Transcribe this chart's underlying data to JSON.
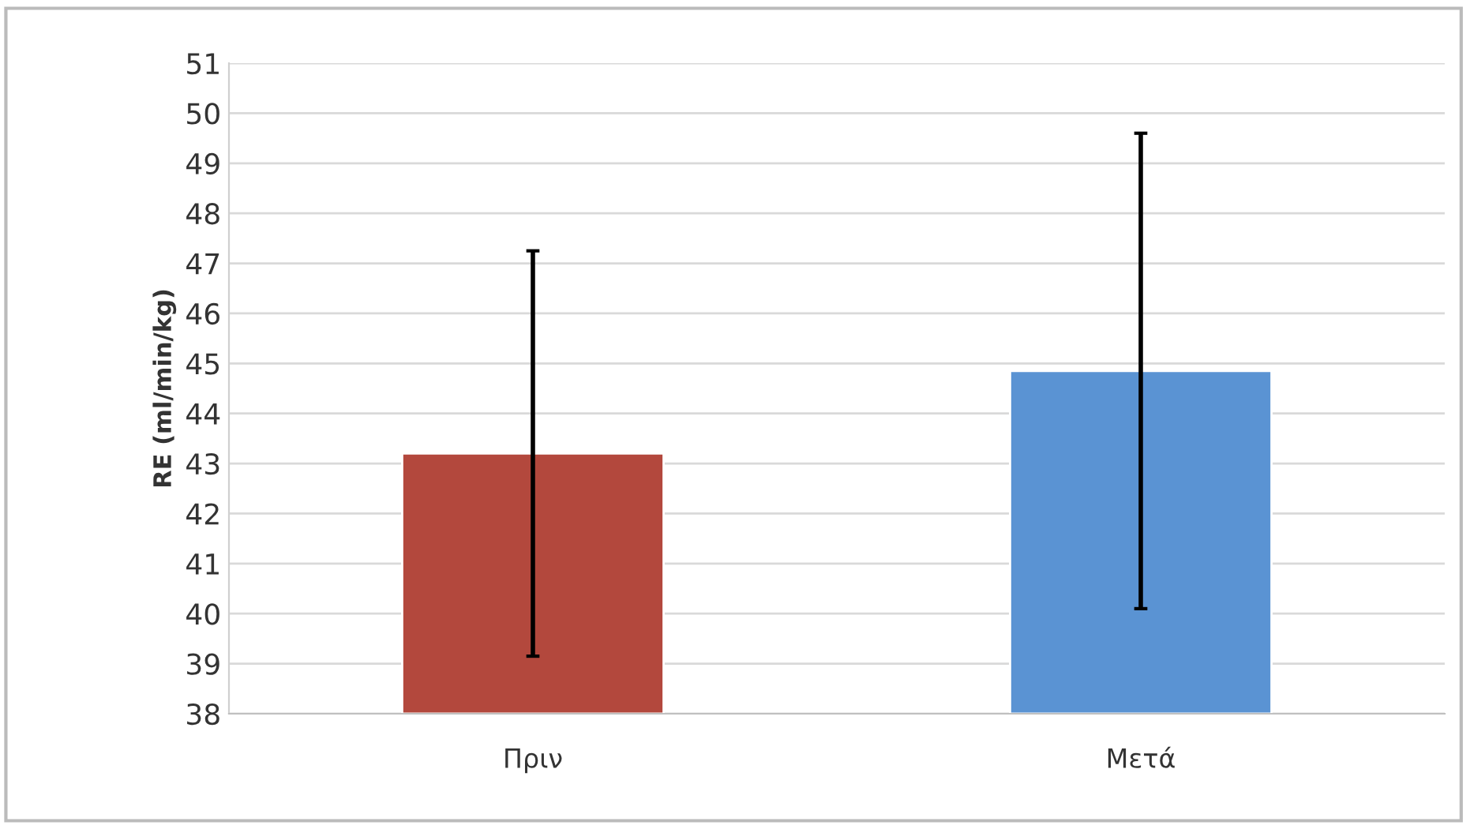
{
  "chart_data": {
    "type": "bar",
    "ylabel": "RE (ml/min/kg)",
    "categories": [
      "Πριν",
      "Μετά"
    ],
    "values": [
      43.2,
      44.85
    ],
    "colors": [
      "#b3483d",
      "#5a93d3"
    ],
    "errors": [
      4.05,
      4.75
    ],
    "ylim": [
      38,
      51
    ],
    "yticks": [
      38,
      39,
      40,
      41,
      42,
      43,
      44,
      45,
      46,
      47,
      48,
      49,
      50,
      51
    ],
    "grid": "y",
    "legend": false
  }
}
